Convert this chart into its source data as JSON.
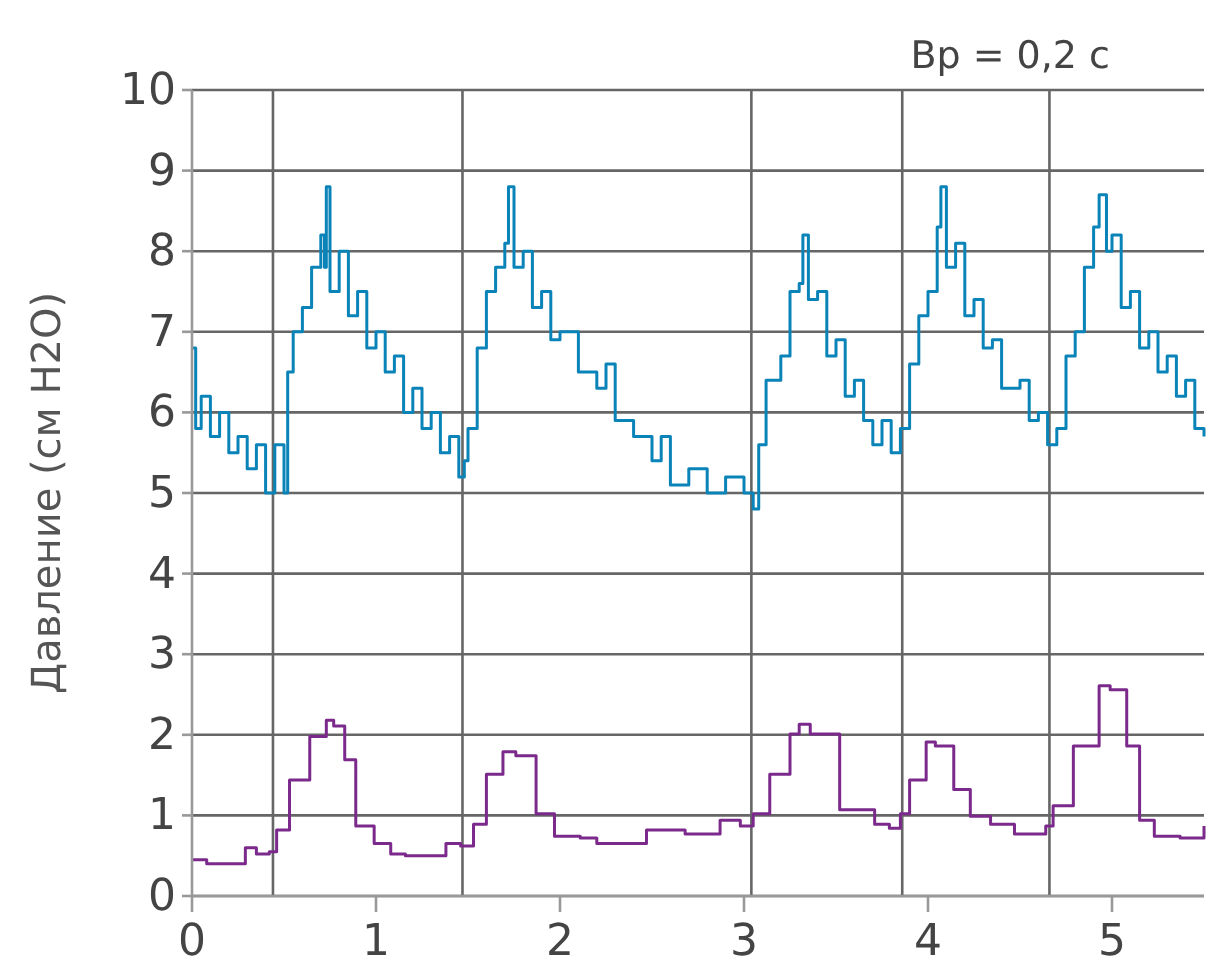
{
  "chart_data": {
    "type": "step",
    "ylabel": "Давление (см H2O)",
    "annotations": [
      "Вр = 0,2 с"
    ],
    "xlim": [
      0,
      5.5
    ],
    "xticks": [
      0,
      1,
      2,
      3,
      4,
      5
    ],
    "ylim": [
      0,
      10
    ],
    "yticks": [
      0,
      1,
      2,
      3,
      4,
      5,
      6,
      7,
      8,
      9,
      10
    ],
    "grid": "y",
    "ref_lines": [
      {
        "axis": "x",
        "value": 0.44
      },
      {
        "axis": "x",
        "value": 1.47
      },
      {
        "axis": "x",
        "value": 3.04
      },
      {
        "axis": "x",
        "value": 3.86
      },
      {
        "axis": "x",
        "value": 4.66
      }
    ],
    "series": [
      {
        "color": "#0a84b8",
        "x": [
          0,
          0.02,
          0.05,
          0.1,
          0.15,
          0.2,
          0.25,
          0.3,
          0.35,
          0.4,
          0.45,
          0.5,
          0.52,
          0.55,
          0.6,
          0.65,
          0.7,
          0.72,
          0.73,
          0.75,
          0.8,
          0.85,
          0.9,
          0.95,
          1.0,
          1.05,
          1.1,
          1.15,
          1.2,
          1.25,
          1.3,
          1.35,
          1.4,
          1.45,
          1.48,
          1.5,
          1.55,
          1.6,
          1.65,
          1.7,
          1.72,
          1.75,
          1.8,
          1.85,
          1.9,
          1.95,
          2.0,
          2.1,
          2.2,
          2.25,
          2.3,
          2.4,
          2.5,
          2.55,
          2.6,
          2.7,
          2.8,
          2.9,
          3.0,
          3.05,
          3.08,
          3.12,
          3.2,
          3.25,
          3.3,
          3.32,
          3.35,
          3.4,
          3.45,
          3.5,
          3.55,
          3.6,
          3.65,
          3.7,
          3.75,
          3.8,
          3.85,
          3.9,
          3.95,
          4.0,
          4.05,
          4.07,
          4.1,
          4.15,
          4.2,
          4.25,
          4.3,
          4.35,
          4.4,
          4.5,
          4.55,
          4.6,
          4.65,
          4.7,
          4.75,
          4.8,
          4.85,
          4.9,
          4.93,
          4.97,
          5.0,
          5.05,
          5.1,
          5.15,
          5.2,
          5.25,
          5.3,
          5.35,
          5.4,
          5.45,
          5.5
        ],
        "values": [
          6.8,
          5.8,
          6.2,
          5.7,
          6.0,
          5.5,
          5.7,
          5.3,
          5.6,
          5.0,
          5.6,
          5.0,
          6.5,
          7.0,
          7.3,
          7.8,
          8.2,
          7.8,
          8.8,
          7.5,
          8.0,
          7.2,
          7.5,
          6.8,
          7.0,
          6.5,
          6.7,
          6.0,
          6.3,
          5.8,
          6.0,
          5.5,
          5.7,
          5.2,
          5.4,
          5.8,
          6.8,
          7.5,
          7.8,
          8.1,
          8.8,
          7.8,
          8.0,
          7.3,
          7.5,
          6.9,
          7.0,
          6.5,
          6.3,
          6.6,
          5.9,
          5.7,
          5.4,
          5.7,
          5.1,
          5.3,
          5.0,
          5.2,
          5.0,
          4.8,
          5.6,
          6.4,
          6.7,
          7.5,
          7.6,
          8.2,
          7.4,
          7.5,
          6.7,
          6.9,
          6.2,
          6.4,
          5.9,
          5.6,
          5.9,
          5.5,
          5.8,
          6.6,
          7.2,
          7.5,
          8.3,
          8.8,
          7.8,
          8.1,
          7.2,
          7.4,
          6.8,
          6.9,
          6.3,
          6.4,
          5.9,
          6.0,
          5.6,
          5.8,
          6.7,
          7.0,
          7.8,
          8.3,
          8.7,
          8.0,
          8.2,
          7.3,
          7.5,
          6.8,
          7.0,
          6.5,
          6.7,
          6.2,
          6.4,
          5.8,
          5.7
        ]
      },
      {
        "color": "#7b2a8c",
        "x": [
          0,
          0.08,
          0.29,
          0.35,
          0.42,
          0.46,
          0.53,
          0.64,
          0.73,
          0.77,
          0.83,
          0.89,
          0.99,
          1.08,
          1.16,
          1.38,
          1.46,
          1.53,
          1.6,
          1.69,
          1.76,
          1.87,
          1.97,
          2.11,
          2.2,
          2.47,
          2.68,
          2.87,
          2.98,
          3.05,
          3.14,
          3.25,
          3.3,
          3.36,
          3.52,
          3.71,
          3.79,
          3.85,
          3.9,
          3.99,
          4.04,
          4.14,
          4.23,
          4.34,
          4.47,
          4.64,
          4.68,
          4.79,
          4.93,
          4.99,
          5.08,
          5.15,
          5.23,
          5.37,
          5.5
        ],
        "values": [
          0.45,
          0.4,
          0.6,
          0.52,
          0.55,
          0.82,
          1.44,
          1.98,
          2.18,
          2.11,
          1.69,
          0.87,
          0.65,
          0.52,
          0.5,
          0.65,
          0.62,
          0.89,
          1.51,
          1.79,
          1.74,
          1.02,
          0.74,
          0.72,
          0.65,
          0.82,
          0.77,
          0.94,
          0.87,
          1.02,
          1.51,
          2.01,
          2.13,
          2.01,
          1.07,
          0.89,
          0.84,
          1.02,
          1.44,
          1.91,
          1.86,
          1.32,
          0.99,
          0.89,
          0.77,
          0.87,
          1.12,
          1.86,
          2.61,
          2.56,
          1.86,
          0.94,
          0.74,
          0.72,
          0.87
        ]
      }
    ]
  }
}
